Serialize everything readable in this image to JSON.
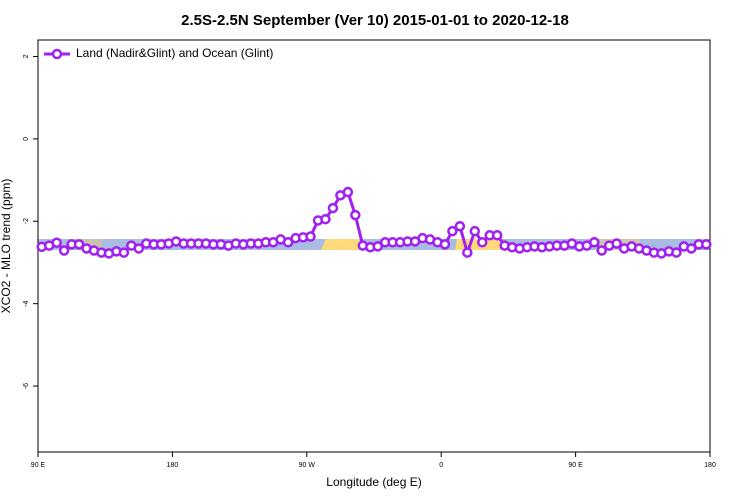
{
  "chart_data": {
    "type": "line",
    "title": "2.5S-2.5N September (Ver 10)   2015-01-01 to 2020-12-18",
    "x_label": "Longitude (deg E)",
    "y_label": "XCO2 - MLO trend (ppm)",
    "legend_position": "top-left",
    "xlim": [
      90,
      540
    ],
    "xticks": [
      {
        "value": 90,
        "label": "90 E"
      },
      180,
      {
        "value": 270,
        "label": "90 W"
      },
      {
        "value": 360,
        "label": "0"
      },
      {
        "value": 450,
        "label": "90 E"
      },
      {
        "value": 540,
        "label": "180"
      }
    ],
    "ylim": [
      -7.6,
      2.4
    ],
    "yticks": [
      -6,
      -4,
      -2,
      0,
      2
    ],
    "x": [
      92.5,
      97.5,
      102.5,
      107.5,
      112.5,
      117.5,
      122.5,
      127.5,
      132.5,
      137.5,
      142.5,
      147.5,
      152.5,
      157.5,
      162.5,
      167.5,
      172.5,
      177.5,
      182.5,
      187.5,
      192.5,
      197.5,
      202.5,
      207.5,
      212.5,
      217.5,
      222.5,
      227.5,
      232.5,
      237.5,
      242.5,
      247.5,
      252.5,
      257.5,
      262.5,
      267.5,
      272.5,
      277.5,
      282.5,
      287.5,
      292.5,
      297.5,
      302.5,
      307.5,
      312.5,
      317.5,
      322.5,
      327.5,
      332.5,
      337.5,
      342.5,
      347.5,
      352.5,
      357.5,
      362.5,
      367.5,
      372.5,
      377.5,
      382.5,
      387.5,
      392.5,
      397.5,
      402.5,
      407.5,
      412.5,
      417.5,
      422.5,
      427.5,
      432.5,
      437.5,
      442.5,
      447.5,
      452.5,
      457.5,
      462.5,
      467.5,
      472.5,
      477.5,
      482.5,
      487.5,
      492.5,
      497.5,
      502.5,
      507.5,
      512.5,
      517.5,
      522.5,
      527.5,
      532.5,
      537.5
    ],
    "series": [
      {
        "name": "Land (Nadir&Glint) and Ocean (Glint)",
        "color": "#a020f0",
        "values": [
          -2.62,
          -2.59,
          -2.52,
          -2.71,
          -2.56,
          -2.56,
          -2.66,
          -2.71,
          -2.76,
          -2.78,
          -2.73,
          -2.76,
          -2.59,
          -2.66,
          -2.54,
          -2.56,
          -2.56,
          -2.54,
          -2.49,
          -2.54,
          -2.54,
          -2.54,
          -2.54,
          -2.56,
          -2.56,
          -2.59,
          -2.54,
          -2.56,
          -2.54,
          -2.54,
          -2.51,
          -2.51,
          -2.44,
          -2.51,
          -2.41,
          -2.39,
          -2.37,
          -1.98,
          -1.95,
          -1.68,
          -1.37,
          -1.29,
          -1.85,
          -2.59,
          -2.63,
          -2.61,
          -2.51,
          -2.51,
          -2.51,
          -2.49,
          -2.49,
          -2.41,
          -2.44,
          -2.51,
          -2.56,
          -2.24,
          -2.12,
          -2.76,
          -2.24,
          -2.51,
          -2.34,
          -2.34,
          -2.59,
          -2.63,
          -2.66,
          -2.63,
          -2.61,
          -2.63,
          -2.61,
          -2.59,
          -2.59,
          -2.54,
          -2.61,
          -2.59,
          -2.51,
          -2.71,
          -2.59,
          -2.54,
          -2.66,
          -2.61,
          -2.66,
          -2.71,
          -2.76,
          -2.78,
          -2.73,
          -2.76,
          -2.61,
          -2.66,
          -2.56,
          -2.56
        ]
      }
    ]
  }
}
